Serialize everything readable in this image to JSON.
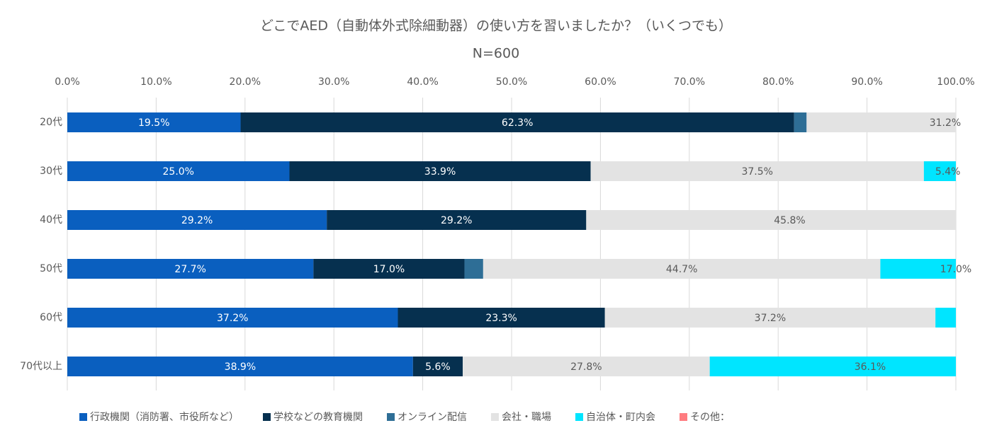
{
  "chart_data": {
    "type": "stacked-bar-horizontal",
    "title": "どこでAED（自動体外式除細動器）の使い方を習いましたか？（いくつでも）",
    "subtitle": "N=600",
    "categories": [
      "20代",
      "30代",
      "40代",
      "50代",
      "60代",
      "70代以上"
    ],
    "xlim": [
      0,
      100
    ],
    "xticks": [
      {
        "value": 0,
        "label": "0.0%"
      },
      {
        "value": 10,
        "label": "10.0%"
      },
      {
        "value": 20,
        "label": "20.0%"
      },
      {
        "value": 30,
        "label": "30.0%"
      },
      {
        "value": 40,
        "label": "40.0%"
      },
      {
        "value": 50,
        "label": "50.0%"
      },
      {
        "value": 60,
        "label": "60.0%"
      },
      {
        "value": 70,
        "label": "70.0%"
      },
      {
        "value": 80,
        "label": "80.0%"
      },
      {
        "value": 90,
        "label": "90.0%"
      },
      {
        "value": 100,
        "label": "100.0%"
      }
    ],
    "grid": true,
    "series": [
      {
        "name": "行政機関（消防署、市役所など）",
        "color": "#0a5fbf",
        "values": [
          19.5,
          25.0,
          29.2,
          27.7,
          37.2,
          38.9
        ],
        "value_labels": [
          "19.5%",
          "25.0%",
          "29.2%",
          "27.7%",
          "37.2%",
          "38.9%"
        ]
      },
      {
        "name": "学校などの教育機関",
        "color": "#06304f",
        "values": [
          62.3,
          33.9,
          29.2,
          17.0,
          23.3,
          5.6
        ],
        "value_labels": [
          "62.3%",
          "33.9%",
          "29.2%",
          "17.0%",
          "23.3%",
          "5.6%"
        ]
      },
      {
        "name": "オンライン配信",
        "color": "#2e6e96",
        "values": [
          1.4,
          0,
          0,
          2.1,
          0,
          0
        ],
        "value_labels": [
          null,
          null,
          null,
          null,
          null,
          null
        ]
      },
      {
        "name": "会社・職場",
        "color": "#e3e3e3",
        "values": [
          31.2,
          37.5,
          45.8,
          44.7,
          37.2,
          27.8
        ],
        "value_labels": [
          "31.2%",
          "37.5%",
          "45.8%",
          "44.7%",
          "37.2%",
          "27.8%"
        ]
      },
      {
        "name": "自治体・町内会",
        "color": "#00e5ff",
        "values": [
          null,
          5.4,
          null,
          17.0,
          2.3,
          36.1
        ],
        "value_labels": [
          null,
          "5.4%",
          null,
          "17.0%",
          null,
          "36.1%"
        ]
      },
      {
        "name": "その他：",
        "color": "#ff7c80",
        "values": [
          null,
          null,
          null,
          null,
          null,
          null
        ],
        "value_labels": [
          null,
          null,
          null,
          null,
          null,
          null
        ]
      }
    ]
  }
}
